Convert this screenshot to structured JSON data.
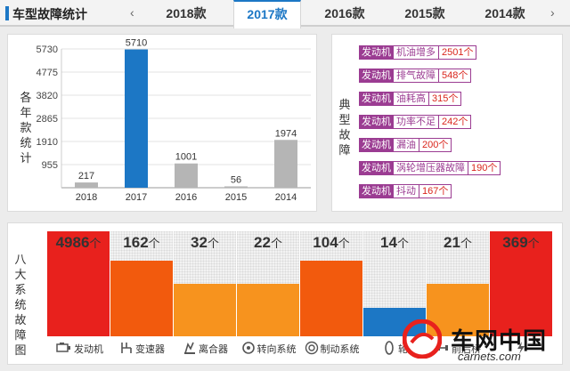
{
  "header": {
    "title": "车型故障统计",
    "prev": "‹",
    "next": "›",
    "tabs": [
      "2018款",
      "2017款",
      "2016款",
      "2015款",
      "2014款"
    ],
    "active_tab": "2017款"
  },
  "year_chart": {
    "ylabel": "各年款统计",
    "chart_data": {
      "type": "bar",
      "categories": [
        "2018",
        "2017",
        "2016",
        "2015",
        "2014"
      ],
      "values": [
        217,
        5710,
        1001,
        56,
        1974
      ],
      "highlight": "2017",
      "yticks": [
        955,
        1910,
        2865,
        3820,
        4775,
        5730
      ],
      "ylim": [
        0,
        5730
      ],
      "colors": {
        "normal": "#b5b5b5",
        "highlight": "#1c77c5"
      }
    }
  },
  "faults": {
    "label": "典型故障",
    "items": [
      {
        "tag": "发动机",
        "desc": "机油增多",
        "count": "2501个"
      },
      {
        "tag": "发动机",
        "desc": "排气故障",
        "count": "548个"
      },
      {
        "tag": "发动机",
        "desc": "油耗高",
        "count": "315个"
      },
      {
        "tag": "发动机",
        "desc": "功率不足",
        "count": "242个"
      },
      {
        "tag": "发动机",
        "desc": "漏油",
        "count": "200个"
      },
      {
        "tag": "发动机",
        "desc": "涡轮增压器故障",
        "count": "190个"
      },
      {
        "tag": "发动机",
        "desc": "抖动",
        "count": "167个"
      }
    ]
  },
  "systems": {
    "label": "八大系统故障图",
    "unit": "个",
    "items": [
      {
        "name": "发动机",
        "count": "4986",
        "level": 1.0,
        "color": "#e8211d",
        "icon": "engine-icon"
      },
      {
        "name": "变速器",
        "count": "162",
        "level": 0.72,
        "color": "#f25a0d",
        "icon": "gearbox-icon"
      },
      {
        "name": "离合器",
        "count": "32",
        "level": 0.5,
        "color": "#f7931e",
        "icon": "clutch-icon"
      },
      {
        "name": "转向系统",
        "count": "22",
        "level": 0.5,
        "color": "#f7931e",
        "icon": "steering-icon"
      },
      {
        "name": "制动系统",
        "count": "104",
        "level": 0.72,
        "color": "#f25a0d",
        "icon": "brake-icon"
      },
      {
        "name": "轮",
        "count": "14",
        "level": 0.27,
        "color": "#1c77c5",
        "icon": "tire-icon"
      },
      {
        "name": "前后桥",
        "count": "21",
        "level": 0.5,
        "color": "#f7931e",
        "icon": "axle-icon"
      },
      {
        "name": "",
        "count": "369",
        "level": 1.0,
        "color": "#e8211d",
        "icon": "electric-icon"
      }
    ]
  },
  "watermark": {
    "name": "车网中国",
    "url": "carnets.com"
  }
}
